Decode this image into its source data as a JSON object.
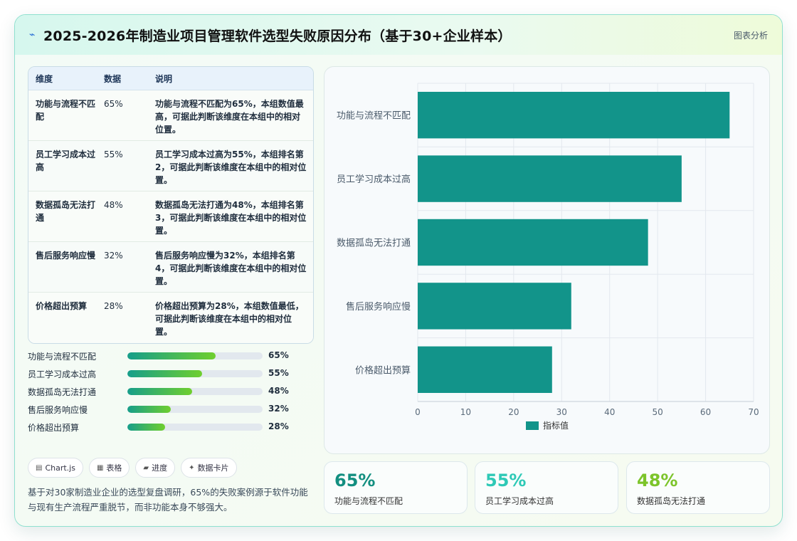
{
  "header": {
    "title": "2025-2026年制造业项目管理软件选型失败原因分布（基于30+企业样本）",
    "analysis_label": "图表分析",
    "logo_glyph": "⌁"
  },
  "table": {
    "headers": [
      "维度",
      "数据",
      "说明"
    ],
    "rows": [
      {
        "dim": "功能与流程不匹配",
        "value": "65%",
        "desc": "功能与流程不匹配为65%，本组数值最高，可据此判断该维度在本组中的相对位置。"
      },
      {
        "dim": "员工学习成本过高",
        "value": "55%",
        "desc": "员工学习成本过高为55%，本组排名第2，可据此判断该维度在本组中的相对位置。"
      },
      {
        "dim": "数据孤岛无法打通",
        "value": "48%",
        "desc": "数据孤岛无法打通为48%，本组排名第3，可据此判断该维度在本组中的相对位置。"
      },
      {
        "dim": "售后服务响应慢",
        "value": "32%",
        "desc": "售后服务响应慢为32%，本组排名第4，可据此判断该维度在本组中的相对位置。"
      },
      {
        "dim": "价格超出预算",
        "value": "28%",
        "desc": "价格超出预算为28%，本组数值最低，可据此判断该维度在本组中的相对位置。"
      }
    ]
  },
  "progress": [
    {
      "label": "功能与流程不匹配",
      "pct": "65%",
      "fraction": 0.65
    },
    {
      "label": "员工学习成本过高",
      "pct": "55%",
      "fraction": 0.55
    },
    {
      "label": "数据孤岛无法打通",
      "pct": "48%",
      "fraction": 0.48
    },
    {
      "label": "售后服务响应慢",
      "pct": "32%",
      "fraction": 0.32
    },
    {
      "label": "价格超出预算",
      "pct": "28%",
      "fraction": 0.28
    }
  ],
  "tags": [
    {
      "icon": "▤",
      "label": "Chart.js"
    },
    {
      "icon": "▦",
      "label": "表格"
    },
    {
      "icon": "▰",
      "label": "进度"
    },
    {
      "icon": "✦",
      "label": "数据卡片"
    }
  ],
  "summary": "基于对30家制造业企业的选型复盘调研，65%的失败案例源于软件功能与现有生产流程严重脱节，而非功能本身不够强大。",
  "stats": [
    {
      "value": "65%",
      "label": "功能与流程不匹配",
      "color": "#138f80"
    },
    {
      "value": "55%",
      "label": "员工学习成本过高",
      "color": "#2ec9b6"
    },
    {
      "value": "48%",
      "label": "数据孤岛无法打通",
      "color": "#7cc42a"
    }
  ],
  "chart_data": {
    "type": "bar",
    "orientation": "horizontal",
    "categories": [
      "功能与流程不匹配",
      "员工学习成本过高",
      "数据孤岛无法打通",
      "售后服务响应慢",
      "价格超出预算"
    ],
    "series": [
      {
        "name": "指标值",
        "values": [
          65,
          55,
          48,
          32,
          28
        ],
        "color": "#12948a"
      }
    ],
    "xlim": [
      0,
      70
    ],
    "xticks": [
      0,
      10,
      20,
      30,
      40,
      50,
      60,
      70
    ],
    "grid": true,
    "legend": "bottom"
  }
}
